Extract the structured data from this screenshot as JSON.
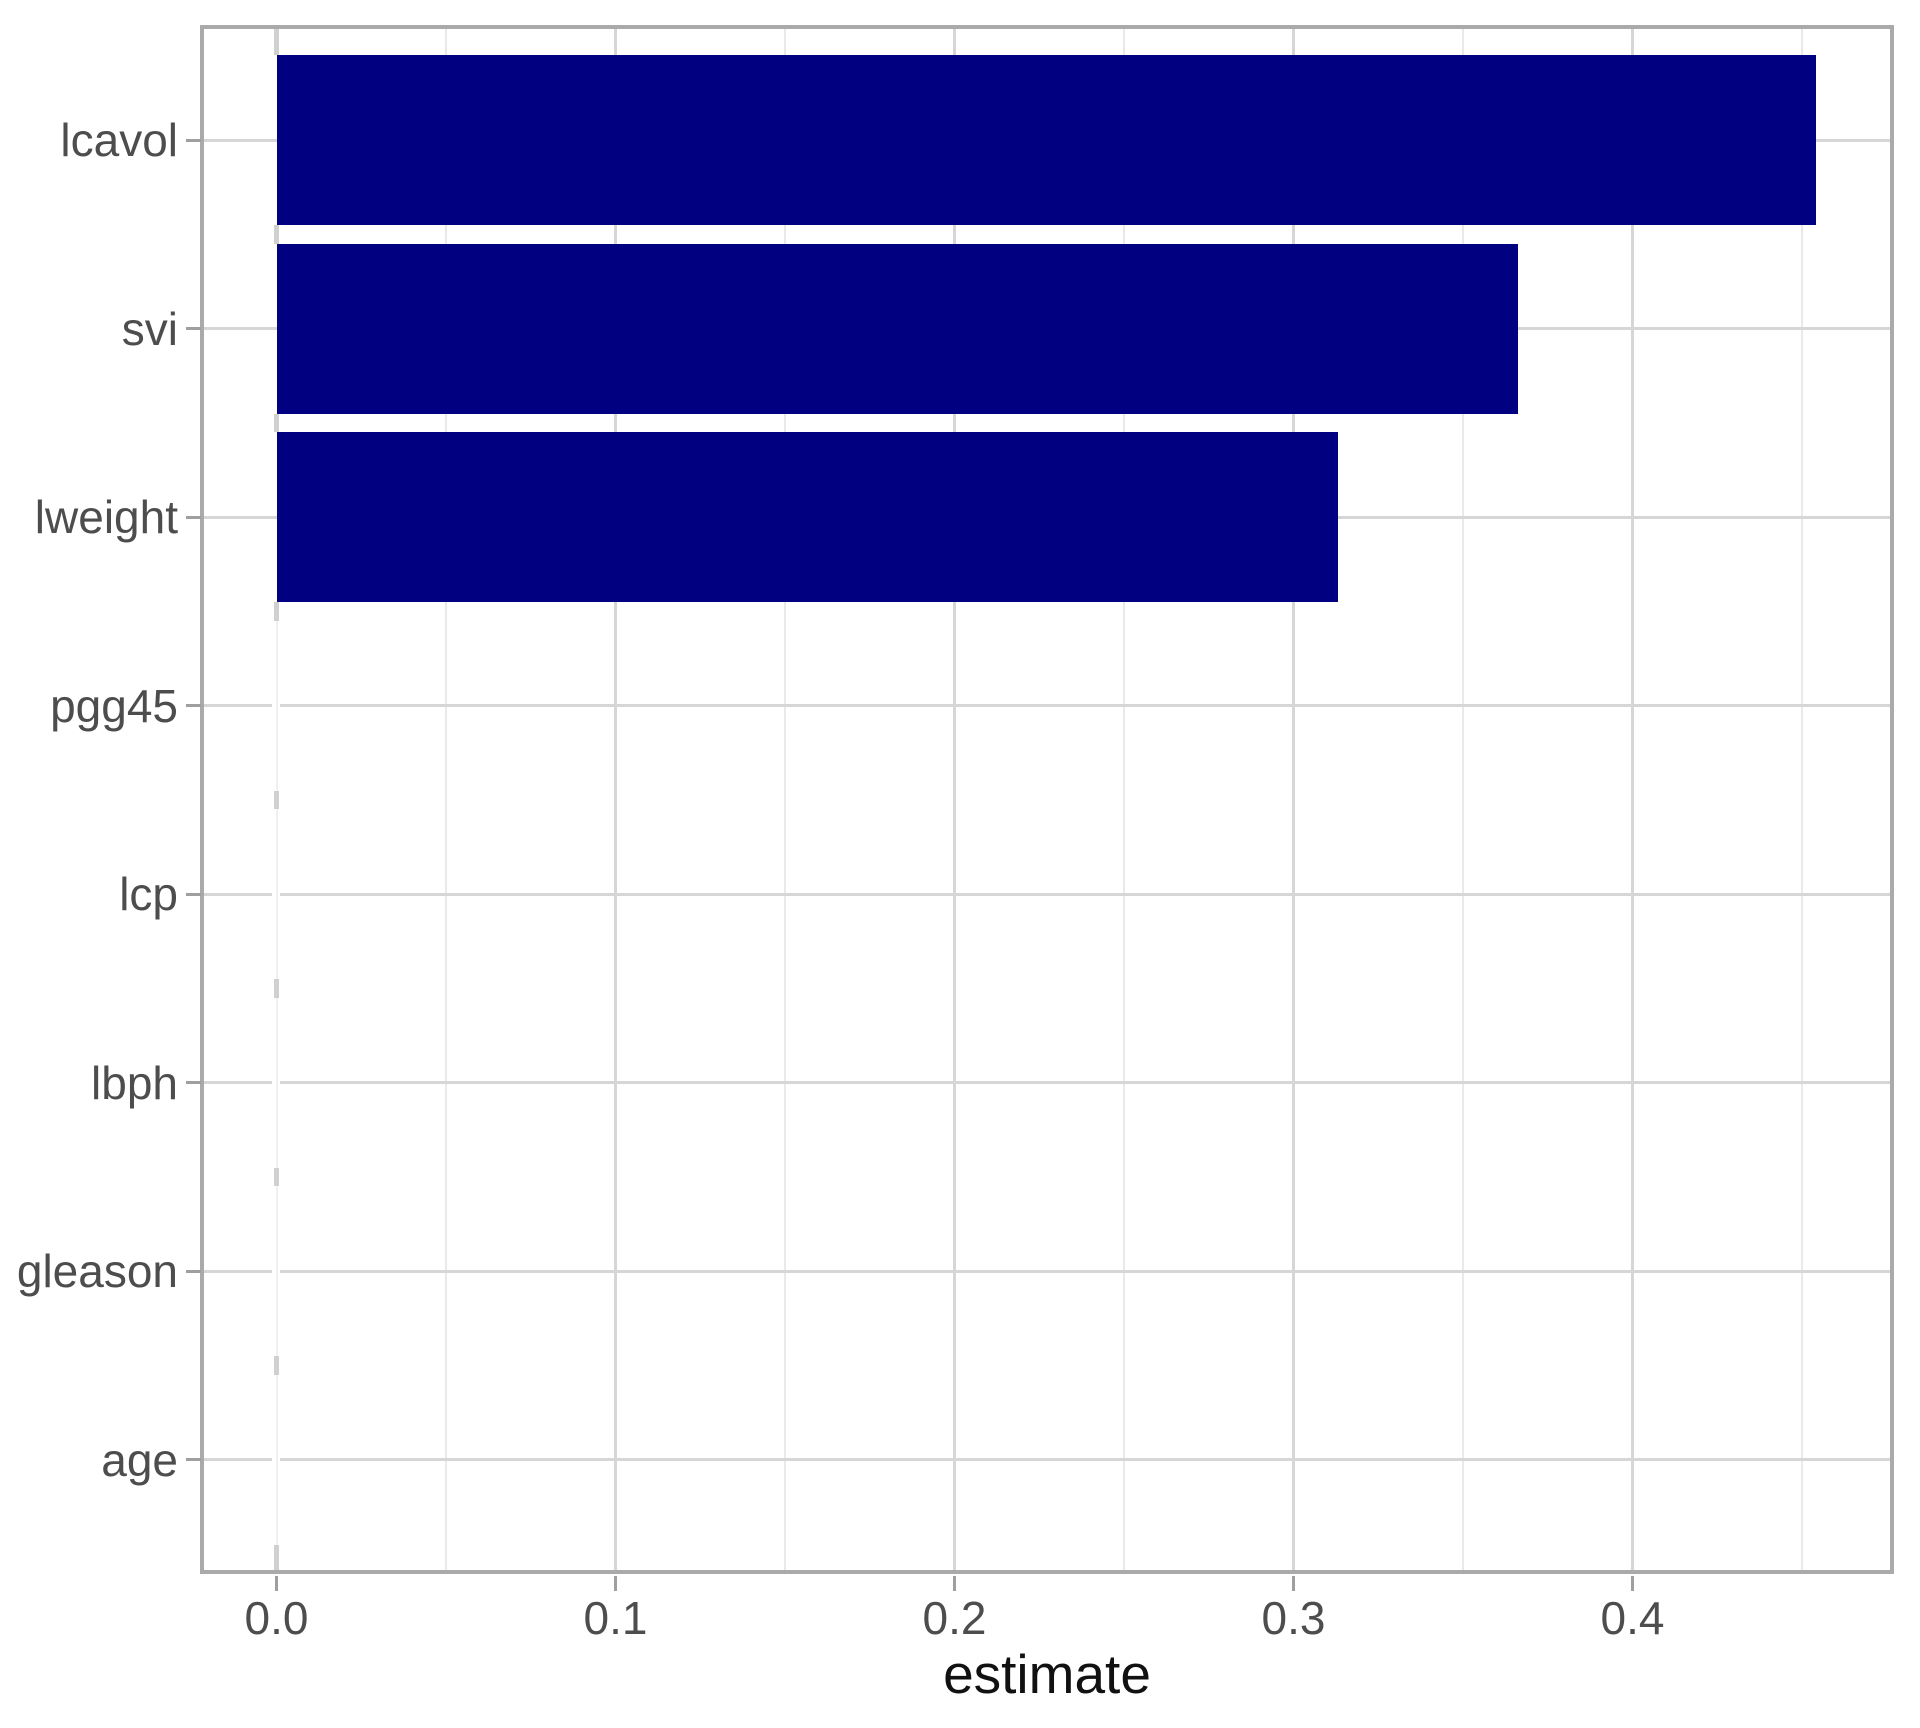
{
  "chart_data": {
    "type": "bar",
    "orientation": "horizontal",
    "title": "",
    "xlabel": "estimate",
    "ylabel": "",
    "categories": [
      "lcavol",
      "svi",
      "lweight",
      "pgg45",
      "lcp",
      "lbph",
      "gleason",
      "age"
    ],
    "values": [
      0.454,
      0.366,
      0.313,
      0,
      0,
      0,
      0,
      0
    ],
    "x_tick_labels": [
      "0.0",
      "0.1",
      "0.2",
      "0.3",
      "0.4"
    ],
    "x_tick_values": [
      0.0,
      0.1,
      0.2,
      0.3,
      0.4
    ],
    "x_minor_values": [
      0.05,
      0.15,
      0.25,
      0.35,
      0.45
    ],
    "xlim": [
      -0.0227,
      0.4765
    ],
    "grid": "major and minor vertical, major horizontal per category",
    "legend": "none",
    "colors": {
      "bar_fill": "#000080",
      "panel_border": "#aaaaaa",
      "grid_major": "#d6d6d6",
      "grid_minor": "#e9e9e9",
      "zero_gridline": "#d0d0d0",
      "axis_tick": "#9f9f9f",
      "axis_text": "#4d4d4d",
      "axis_title": "#111111",
      "background": "#ffffff"
    }
  }
}
